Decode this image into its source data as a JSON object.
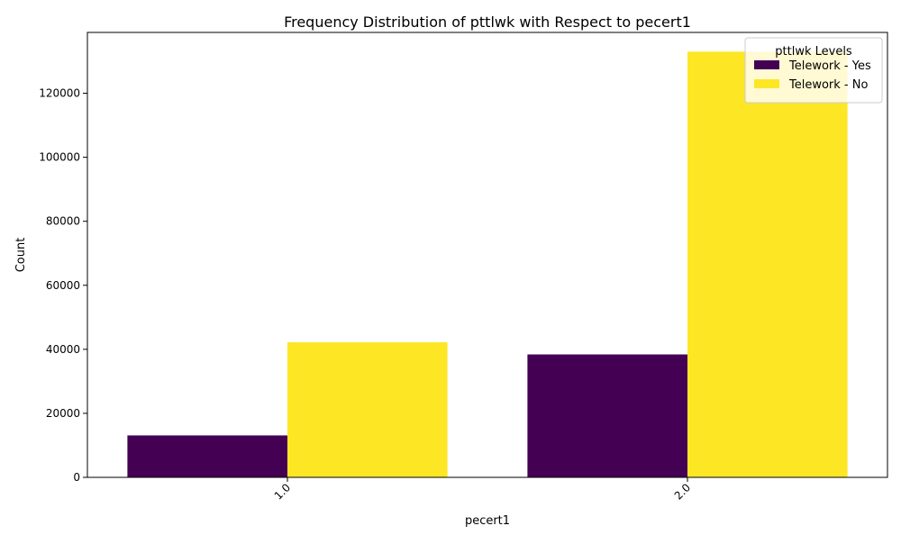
{
  "chart_data": {
    "type": "bar",
    "title": "Frequency Distribution of pttlwk with Respect to pecert1",
    "xlabel": "pecert1",
    "ylabel": "Count",
    "categories": [
      "1.0",
      "2.0"
    ],
    "series": [
      {
        "name": "Telework - Yes",
        "color": "#440154",
        "values": [
          13100,
          38400
        ]
      },
      {
        "name": "Telework - No",
        "color": "#fde725",
        "values": [
          42200,
          133000
        ]
      }
    ],
    "ylim": [
      0,
      139000
    ],
    "yticks": [
      0,
      20000,
      40000,
      60000,
      80000,
      100000,
      120000
    ],
    "legend": {
      "title": "pttlwk Levels",
      "position": "top-right"
    },
    "grid": false
  }
}
